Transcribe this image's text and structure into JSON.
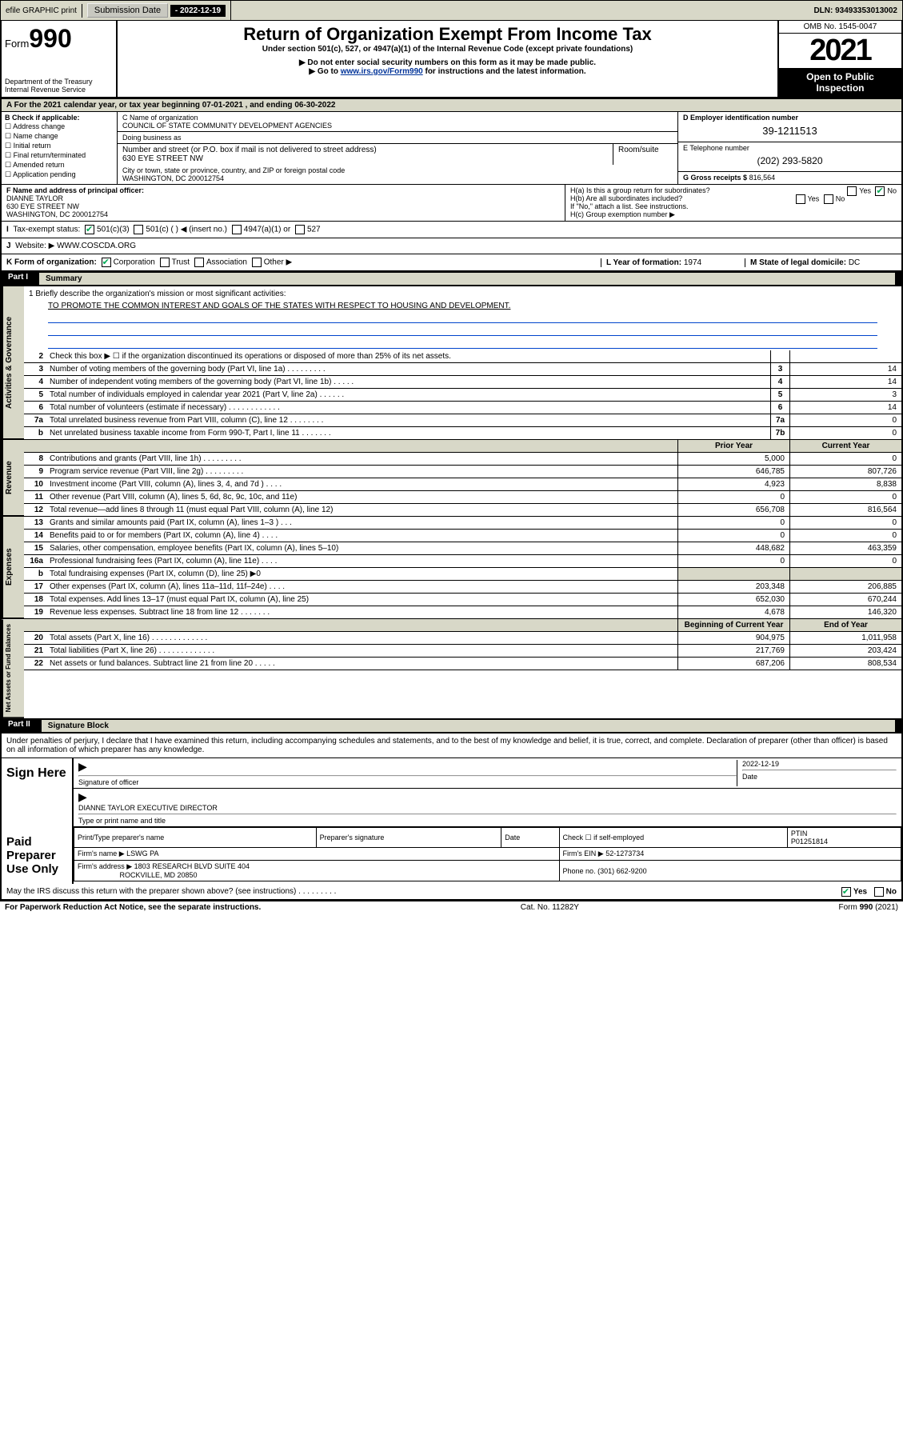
{
  "top": {
    "efile": "efile GRAPHIC print",
    "sub_label": "Submission Date",
    "sub_date": "- 2022-12-19",
    "dln_label": "DLN:",
    "dln": "93493353013002"
  },
  "header": {
    "form_word": "Form",
    "form_num": "990",
    "dept": "Department of the Treasury\nInternal Revenue Service",
    "title": "Return of Organization Exempt From Income Tax",
    "sub1": "Under section 501(c), 527, or 4947(a)(1) of the Internal Revenue Code (except private foundations)",
    "sub2": "▶ Do not enter social security numbers on this form as it may be made public.",
    "sub3_pre": "▶ Go to ",
    "sub3_link": "www.irs.gov/Form990",
    "sub3_post": " for instructions and the latest information.",
    "omb": "OMB No. 1545-0047",
    "year": "2021",
    "otp": "Open to Public Inspection"
  },
  "A": {
    "text": "A For the 2021 calendar year, or tax year beginning 07-01-2021   , and ending 06-30-2022"
  },
  "B": {
    "label": "B Check if applicable:",
    "opts": [
      "Address change",
      "Name change",
      "Initial return",
      "Final return/terminated",
      "Amended return",
      "Application pending"
    ]
  },
  "C": {
    "name_label": "C Name of organization",
    "name": "COUNCIL OF STATE COMMUNITY DEVELOPMENT AGENCIES",
    "dba_label": "Doing business as",
    "street_label": "Number and street (or P.O. box if mail is not delivered to street address)",
    "street": "630 EYE STREET NW",
    "suite_label": "Room/suite",
    "city_label": "City or town, state or province, country, and ZIP or foreign postal code",
    "city": "WASHINGTON, DC  200012754"
  },
  "D": {
    "label": "D Employer identification number",
    "val": "39-1211513"
  },
  "E": {
    "label": "E Telephone number",
    "val": "(202) 293-5820"
  },
  "G": {
    "label": "G Gross receipts $",
    "val": "816,564"
  },
  "F": {
    "label": "F  Name and address of principal officer:",
    "name": "DIANNE TAYLOR",
    "addr1": "630 EYE STREET NW",
    "addr2": "WASHINGTON, DC  200012754"
  },
  "H": {
    "a": "H(a)  Is this a group return for subordinates?",
    "b": "H(b)  Are all subordinates included?",
    "note": "If \"No,\" attach a list. See instructions.",
    "c": "H(c)  Group exemption number ▶",
    "yes": "Yes",
    "no": "No"
  },
  "I": {
    "label": "Tax-exempt status:",
    "o1": "501(c)(3)",
    "o2": "501(c) (  ) ◀ (insert no.)",
    "o3": "4947(a)(1) or",
    "o4": "527"
  },
  "J": {
    "label": "Website: ▶",
    "val": "WWW.COSCDA.ORG"
  },
  "K": {
    "label": "K Form of organization:",
    "opts": [
      "Corporation",
      "Trust",
      "Association",
      "Other ▶"
    ]
  },
  "L": {
    "label": "L Year of formation:",
    "val": "1974"
  },
  "M": {
    "label": "M State of legal domicile:",
    "val": "DC"
  },
  "part1": {
    "num": "Part I",
    "title": "Summary"
  },
  "side": {
    "ag": "Activities & Governance",
    "rev": "Revenue",
    "exp": "Expenses",
    "na": "Net Assets or\nFund Balances"
  },
  "mission": {
    "q": "1  Briefly describe the organization's mission or most significant activities:",
    "a": "TO PROMOTE THE COMMON INTEREST AND GOALS OF THE STATES WITH RESPECT TO HOUSING AND DEVELOPMENT."
  },
  "gov_lines": [
    {
      "n": "2",
      "t": "Check this box ▶ ☐  if the organization discontinued its operations or disposed of more than 25% of its net assets.",
      "b": "",
      "v": ""
    },
    {
      "n": "3",
      "t": "Number of voting members of the governing body (Part VI, line 1a)   .    .    .    .    .    .    .    .    .",
      "b": "3",
      "v": "14"
    },
    {
      "n": "4",
      "t": "Number of independent voting members of the governing body (Part VI, line 1b)  .    .    .    .    .",
      "b": "4",
      "v": "14"
    },
    {
      "n": "5",
      "t": "Total number of individuals employed in calendar year 2021 (Part V, line 2a)    .    .    .    .    .    .",
      "b": "5",
      "v": "3"
    },
    {
      "n": "6",
      "t": "Total number of volunteers (estimate if necessary)   .    .    .    .    .    .    .    .    .    .    .    .",
      "b": "6",
      "v": "14"
    },
    {
      "n": "7a",
      "t": "Total unrelated business revenue from Part VIII, column (C), line 12  .    .    .    .    .    .    .    .",
      "b": "7a",
      "v": "0"
    },
    {
      "n": "b",
      "t": "Net unrelated business taxable income from Form 990-T, Part I, line 11  .    .    .    .    .    .    .",
      "b": "7b",
      "v": "0"
    }
  ],
  "money_hdr": {
    "c1": "Prior Year",
    "c2": "Current Year"
  },
  "rev_lines": [
    {
      "n": "8",
      "t": "Contributions and grants (Part VIII, line 1h)  .    .    .    .    .    .    .    .    .",
      "p": "5,000",
      "c": "0"
    },
    {
      "n": "9",
      "t": "Program service revenue (Part VIII, line 2g)   .    .    .    .    .    .    .    .    .",
      "p": "646,785",
      "c": "807,726"
    },
    {
      "n": "10",
      "t": "Investment income (Part VIII, column (A), lines 3, 4, and 7d )    .    .    .    .",
      "p": "4,923",
      "c": "8,838"
    },
    {
      "n": "11",
      "t": "Other revenue (Part VIII, column (A), lines 5, 6d, 8c, 9c, 10c, and 11e)",
      "p": "0",
      "c": "0"
    },
    {
      "n": "12",
      "t": "Total revenue—add lines 8 through 11 (must equal Part VIII, column (A), line 12)",
      "p": "656,708",
      "c": "816,564"
    }
  ],
  "exp_lines": [
    {
      "n": "13",
      "t": "Grants and similar amounts paid (Part IX, column (A), lines 1–3 )   .    .    .",
      "p": "0",
      "c": "0"
    },
    {
      "n": "14",
      "t": "Benefits paid to or for members (Part IX, column (A), line 4)   .    .    .    .",
      "p": "0",
      "c": "0"
    },
    {
      "n": "15",
      "t": "Salaries, other compensation, employee benefits (Part IX, column (A), lines 5–10)",
      "p": "448,682",
      "c": "463,359"
    },
    {
      "n": "16a",
      "t": "Professional fundraising fees (Part IX, column (A), line 11e)  .    .    .    .",
      "p": "0",
      "c": "0"
    },
    {
      "n": "b",
      "t": "Total fundraising expenses (Part IX, column (D), line 25) ▶0",
      "p": "",
      "c": ""
    },
    {
      "n": "17",
      "t": "Other expenses (Part IX, column (A), lines 11a–11d, 11f–24e)  .    .    .    .",
      "p": "203,348",
      "c": "206,885"
    },
    {
      "n": "18",
      "t": "Total expenses. Add lines 13–17 (must equal Part IX, column (A), line 25)",
      "p": "652,030",
      "c": "670,244"
    },
    {
      "n": "19",
      "t": "Revenue less expenses. Subtract line 18 from line 12  .    .    .    .    .    .    .",
      "p": "4,678",
      "c": "146,320"
    }
  ],
  "na_hdr": {
    "c1": "Beginning of Current Year",
    "c2": "End of Year"
  },
  "na_lines": [
    {
      "n": "20",
      "t": "Total assets (Part X, line 16)  .    .    .    .    .    .    .    .    .    .    .    .    .",
      "p": "904,975",
      "c": "1,011,958"
    },
    {
      "n": "21",
      "t": "Total liabilities (Part X, line 26) .    .    .    .    .    .    .    .    .    .    .    .    .",
      "p": "217,769",
      "c": "203,424"
    },
    {
      "n": "22",
      "t": "Net assets or fund balances. Subtract line 21 from line 20  .    .    .    .    .",
      "p": "687,206",
      "c": "808,534"
    }
  ],
  "part2": {
    "num": "Part II",
    "title": "Signature Block"
  },
  "penalties": "Under penalties of perjury, I declare that I have examined this return, including accompanying schedules and statements, and to the best of my knowledge and belief, it is true, correct, and complete. Declaration of preparer (other than officer) is based on all information of which preparer has any knowledge.",
  "sign": {
    "here": "Sign Here",
    "sig_label": "Signature of officer",
    "date": "2022-12-19",
    "date_label": "Date",
    "name": "DIANNE TAYLOR  EXECUTIVE DIRECTOR",
    "name_label": "Type or print name and title"
  },
  "prep": {
    "title": "Paid Preparer Use Only",
    "h1": "Print/Type preparer's name",
    "h2": "Preparer's signature",
    "h3": "Date",
    "h4_pre": "Check ☐ if self-employed",
    "h5": "PTIN",
    "ptin": "P01251814",
    "firm_label": "Firm's name    ▶",
    "firm": "LSWG PA",
    "ein_label": "Firm's EIN ▶",
    "ein": "52-1273734",
    "addr_label": "Firm's address ▶",
    "addr1": "1803 RESEARCH BLVD SUITE 404",
    "addr2": "ROCKVILLE, MD  20850",
    "phone_label": "Phone no.",
    "phone": "(301) 662-9200"
  },
  "discuss": {
    "q": "May the IRS discuss this return with the preparer shown above? (see instructions)    .    .    .    .    .    .    .    .    .",
    "yes": "Yes",
    "no": "No"
  },
  "footer": {
    "l": "For Paperwork Reduction Act Notice, see the separate instructions.",
    "m": "Cat. No. 11282Y",
    "r": "Form 990 (2021)"
  },
  "colors": {
    "band": "#d8d8c8",
    "link": "#003399",
    "rule": "#0044cc",
    "check": "#00aa55"
  }
}
